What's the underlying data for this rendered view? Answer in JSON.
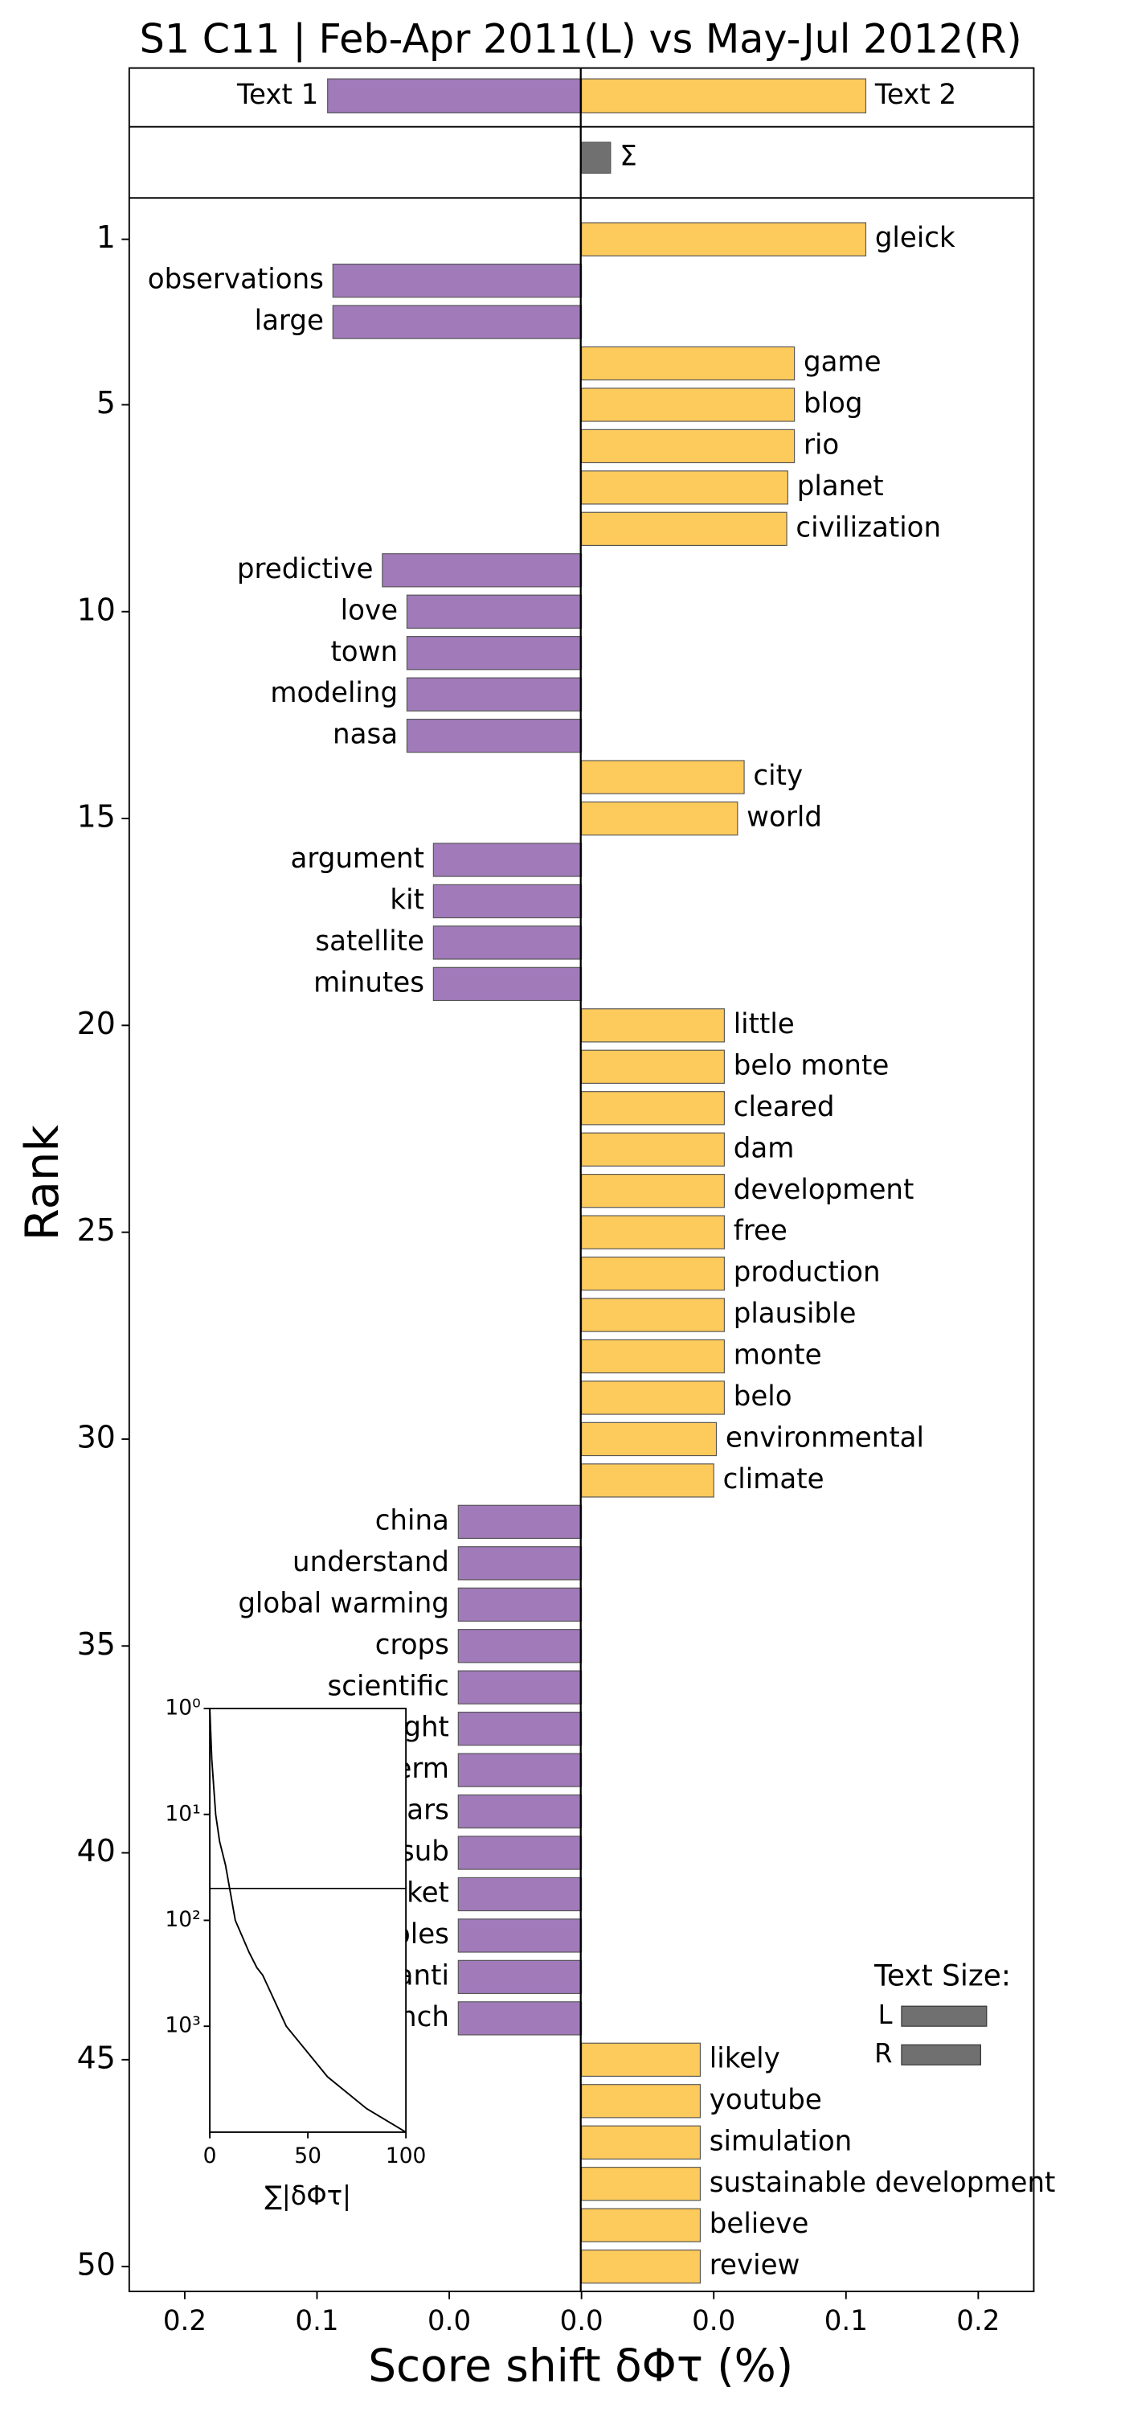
{
  "chart_data": [
    {
      "type": "bar",
      "orientation": "horizontal",
      "title": "S1 C11 | Feb-Apr 2011(L) vs May-Jul 2012(R)",
      "xlabel": "Score shift δΦτ (%)",
      "ylabel": "Rank",
      "summary": {
        "categories": [
          "Text 1",
          "Text 2"
        ],
        "values": [
          -0.096,
          0.1075
        ]
      },
      "sigma": {
        "label": "Σ",
        "value": 0.011,
        "color": "#707070"
      },
      "negative_color": "#a07ab9",
      "positive_color": "#fdca5c",
      "categories": [
        "gleick",
        "observations",
        "large",
        "game",
        "blog",
        "rio",
        "planet",
        "civilization",
        "predictive",
        "love",
        "town",
        "modeling",
        "nasa",
        "city",
        "world",
        "argument",
        "kit",
        "satellite",
        "minutes",
        "little",
        "belo monte",
        "cleared",
        "dam",
        "development",
        "free",
        "production",
        "plausible",
        "monte",
        "belo",
        "environmental",
        "climate",
        "china",
        "understand",
        "global warming",
        "crops",
        "scientific",
        "light",
        "term",
        "dollars",
        "sub",
        "market",
        "variables",
        "anti",
        "launch",
        "likely",
        "youtube",
        "simulation",
        "sustainable development",
        "believe",
        "review"
      ],
      "values": [
        0.1075,
        -0.094,
        -0.094,
        0.0805,
        0.0805,
        0.0805,
        0.078,
        0.0776,
        -0.0753,
        -0.066,
        -0.066,
        -0.066,
        -0.066,
        0.0615,
        0.059,
        -0.056,
        -0.056,
        -0.056,
        -0.056,
        0.054,
        0.054,
        0.054,
        0.054,
        0.054,
        0.054,
        0.054,
        0.054,
        0.054,
        0.054,
        0.051,
        0.05,
        -0.0466,
        -0.0466,
        -0.0466,
        -0.0466,
        -0.0466,
        -0.0466,
        -0.0466,
        -0.0466,
        -0.0466,
        -0.0466,
        -0.0466,
        -0.0466,
        -0.0466,
        0.0449,
        0.0449,
        0.0449,
        0.0449,
        0.0449,
        0.0449
      ],
      "xlim": [
        -0.171,
        0.171
      ],
      "xticks": [
        {
          "value": -0.15,
          "label": "0.2"
        },
        {
          "value": -0.1,
          "label": "0.1"
        },
        {
          "value": -0.05,
          "label": "0.0"
        },
        {
          "value": 0,
          "label": "0.0"
        },
        {
          "value": 0.05,
          "label": "0.0"
        },
        {
          "value": 0.1,
          "label": "0.1"
        },
        {
          "value": 0.15,
          "label": "0.2"
        }
      ],
      "ylim": [
        0,
        50.6
      ],
      "yticks": [
        1,
        5,
        10,
        15,
        20,
        25,
        30,
        35,
        40,
        45,
        50
      ],
      "text_size": {
        "title": "Text Size:",
        "labels": [
          "L",
          "R"
        ],
        "values": [
          1,
          0.93
        ],
        "color": "#707070"
      }
    },
    {
      "type": "line",
      "xlabel": "∑|δΦτ|",
      "x": [
        0,
        1,
        3,
        5,
        8,
        13,
        20,
        24,
        27,
        39,
        60,
        80,
        100
      ],
      "y": [
        1,
        3,
        10,
        18,
        30,
        100,
        200,
        280,
        330,
        1000,
        3000,
        6000,
        10000
      ],
      "color": "#000000",
      "log_y": true,
      "xlim": [
        0,
        100
      ],
      "xticks": [
        0,
        50,
        100
      ],
      "ylim": [
        1,
        10000
      ],
      "yticks": [
        {
          "value": 1,
          "label": "10⁰"
        },
        {
          "value": 10,
          "label": "10¹"
        },
        {
          "value": 100,
          "label": "10²"
        },
        {
          "value": 1000,
          "label": "10³"
        }
      ],
      "reference_line": 50
    }
  ]
}
